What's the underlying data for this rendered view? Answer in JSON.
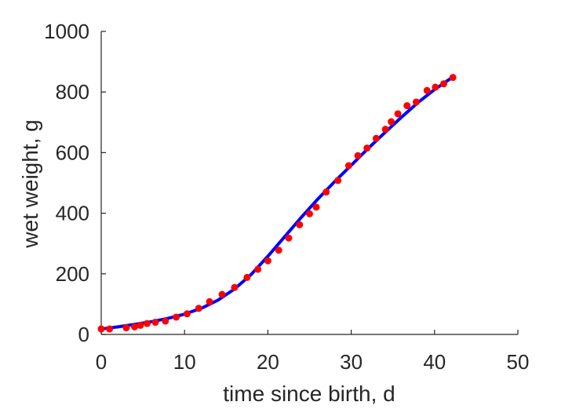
{
  "chart_data": {
    "type": "scatter",
    "title": "",
    "xlabel": "time since birth, d",
    "ylabel": "wet weight, g",
    "xlim": [
      0,
      50
    ],
    "ylim": [
      0,
      1000
    ],
    "xticks": [
      0,
      10,
      20,
      30,
      40,
      50
    ],
    "yticks": [
      0,
      200,
      400,
      600,
      800,
      1000
    ],
    "xtick_labels": [
      "0",
      "10",
      "20",
      "30",
      "40",
      "50"
    ],
    "ytick_labels": [
      "0",
      "200",
      "400",
      "600",
      "800",
      "1000"
    ],
    "grid": false,
    "legend": "none",
    "series": [
      {
        "kind": "scatter",
        "color": "#ff0000",
        "x": [
          0,
          1,
          3,
          4,
          4.7,
          5.5,
          6.5,
          7.7,
          9,
          10.3,
          11.7,
          13,
          14.5,
          16,
          17.5,
          18.8,
          20,
          21.3,
          22.5,
          23.8,
          25,
          25.8,
          27,
          28.4,
          29.7,
          30.8,
          31.9,
          33,
          34.1,
          34.8,
          35.6,
          36.7,
          37.8,
          39.1,
          40.1,
          41.1,
          42.2
        ],
        "y": [
          18,
          18,
          22,
          25,
          30,
          36,
          40,
          44,
          57,
          68,
          86,
          108,
          132,
          155,
          188,
          215,
          243,
          278,
          318,
          362,
          398,
          420,
          470,
          508,
          557,
          590,
          615,
          647,
          677,
          702,
          728,
          755,
          767,
          805,
          816,
          827,
          848
        ]
      },
      {
        "kind": "line",
        "color": "#0000ff",
        "x": [
          0,
          2,
          4,
          6,
          8,
          10,
          12,
          14,
          16,
          18,
          20,
          22,
          24,
          26,
          28,
          30,
          32,
          34,
          36,
          38,
          40,
          42
        ],
        "y": [
          18,
          25,
          33,
          42,
          53,
          67,
          86,
          113,
          150,
          198,
          258,
          322,
          386,
          447,
          504,
          558,
          613,
          665,
          716,
          765,
          808,
          846
        ]
      }
    ]
  }
}
